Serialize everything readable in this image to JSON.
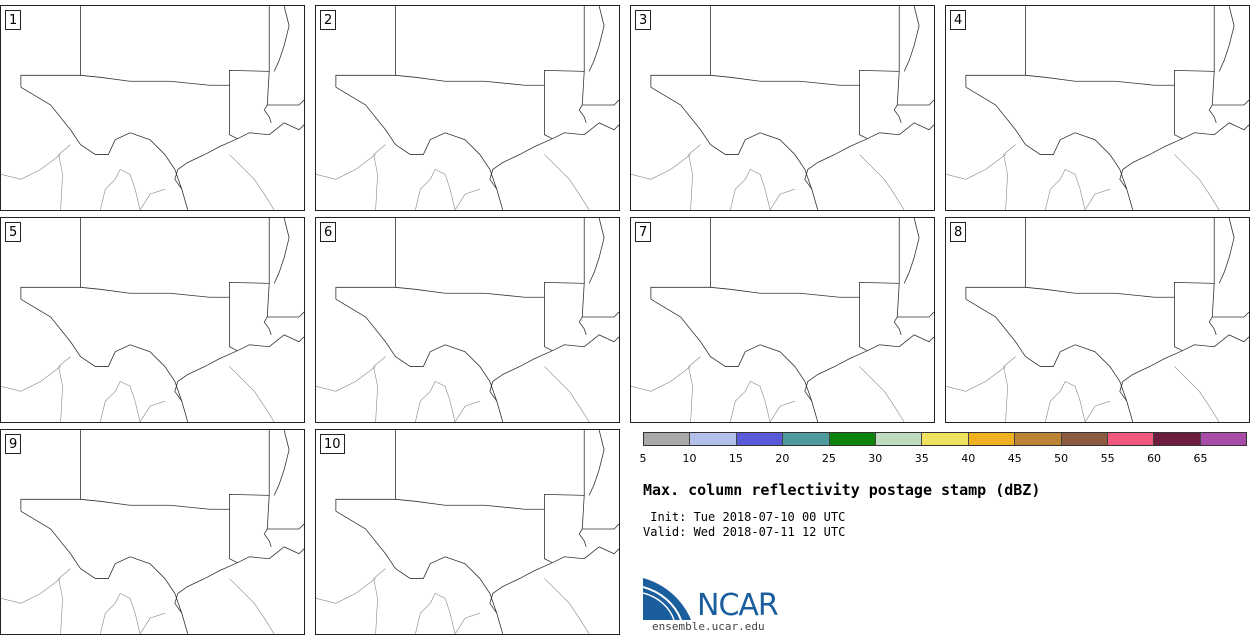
{
  "panels": [
    "1",
    "2",
    "3",
    "4",
    "5",
    "6",
    "7",
    "8",
    "9",
    "10"
  ],
  "colorbar": {
    "colors": [
      "#a8a8a8",
      "#b4c0ec",
      "#5a5ad8",
      "#4e9a9c",
      "#0c840c",
      "#c0dcc0",
      "#f0e060",
      "#f0b020",
      "#bc8434",
      "#8c5c40",
      "#f0587c",
      "#6c1c3c",
      "#a84ca8"
    ],
    "ticks": [
      "5",
      "10",
      "15",
      "20",
      "25",
      "30",
      "35",
      "40",
      "45",
      "50",
      "55",
      "60",
      "65"
    ]
  },
  "title": "Max. column reflectivity postage stamp (dBZ)",
  "init_line": " Init: Tue 2018-07-10 00 UTC",
  "valid_line": "Valid: Wed 2018-07-11 12 UTC",
  "logo": {
    "name": "NCAR",
    "url": "ensemble.ucar.edu"
  }
}
